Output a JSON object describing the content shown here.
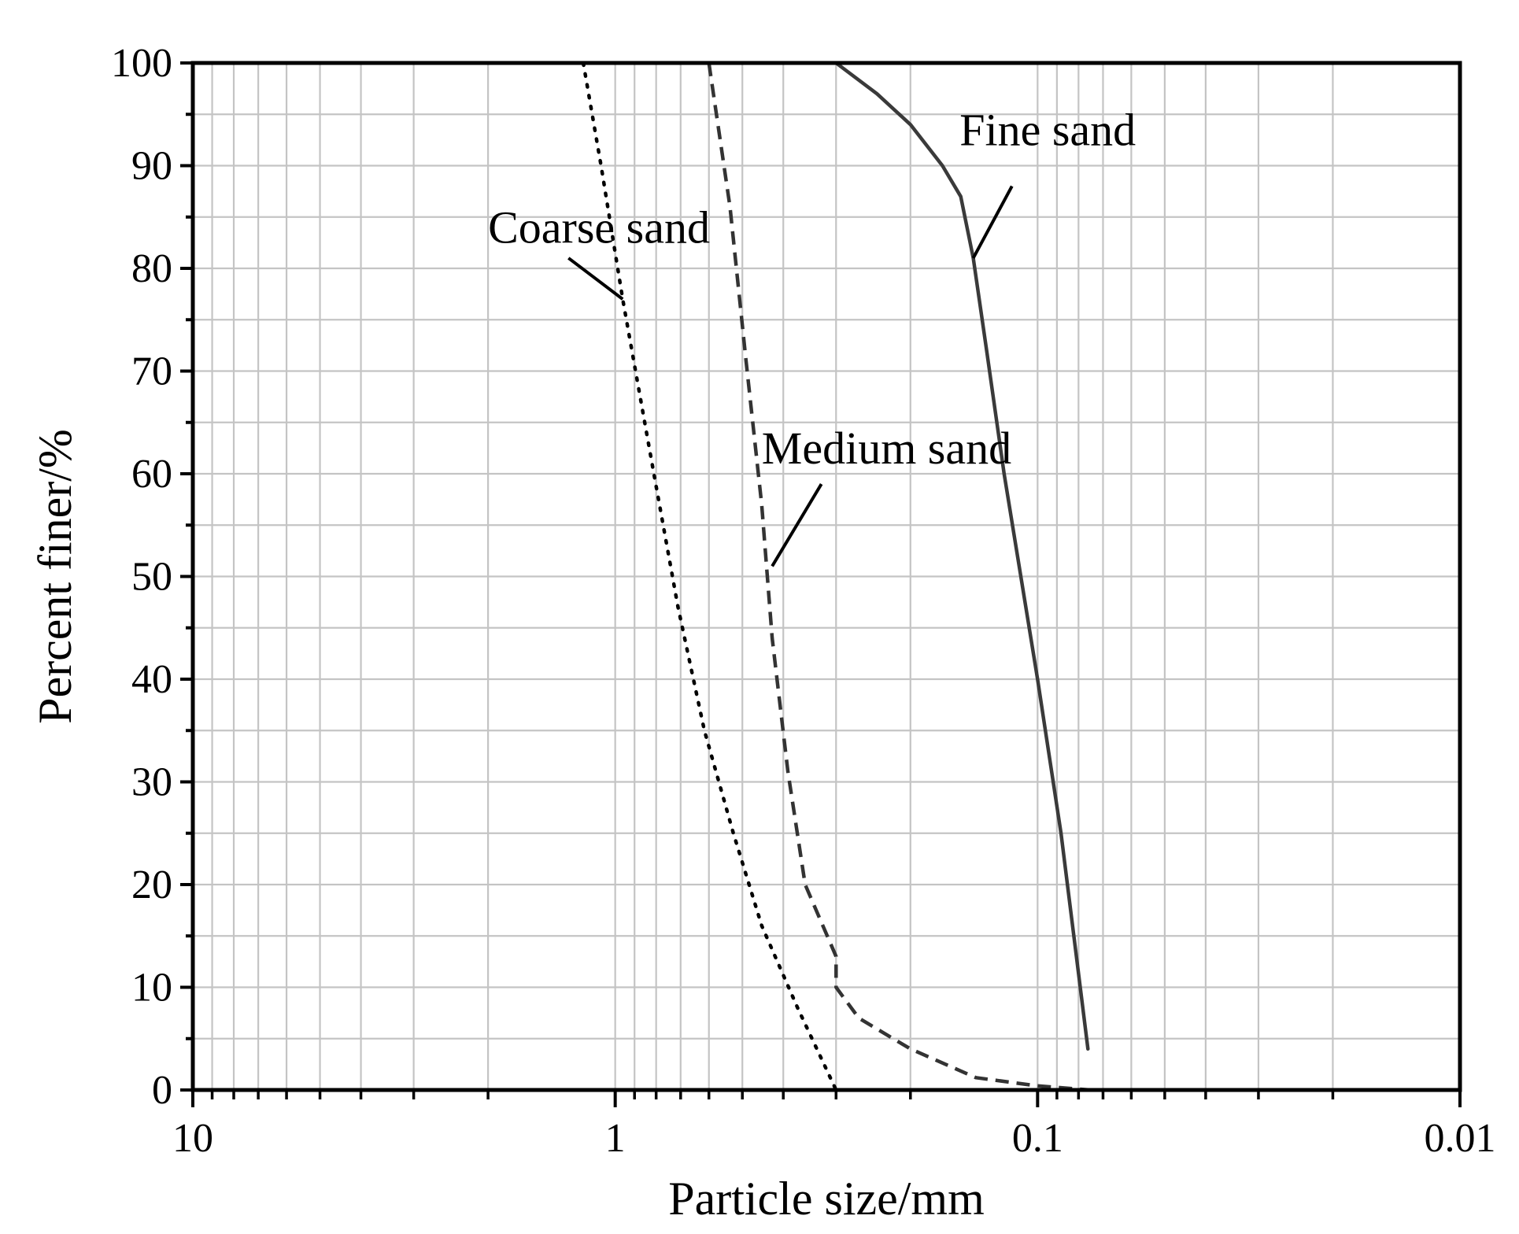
{
  "chart_data": {
    "type": "line",
    "title": "",
    "xlabel": "Particle size/mm",
    "ylabel": "Percent finer/%",
    "x_scale": "log",
    "x_reversed": true,
    "xlim": [
      10,
      0.01
    ],
    "ylim": [
      0,
      100
    ],
    "x_ticks": [
      {
        "value": 10,
        "label": "10"
      },
      {
        "value": 1,
        "label": "1"
      },
      {
        "value": 0.1,
        "label": "0.1"
      },
      {
        "value": 0.01,
        "label": "0.01"
      }
    ],
    "y_ticks": [
      {
        "value": 0,
        "label": "0"
      },
      {
        "value": 10,
        "label": "10"
      },
      {
        "value": 20,
        "label": "20"
      },
      {
        "value": 30,
        "label": "30"
      },
      {
        "value": 40,
        "label": "40"
      },
      {
        "value": 50,
        "label": "50"
      },
      {
        "value": 60,
        "label": "60"
      },
      {
        "value": 70,
        "label": "70"
      },
      {
        "value": 80,
        "label": "80"
      },
      {
        "value": 90,
        "label": "90"
      },
      {
        "value": 100,
        "label": "100"
      }
    ],
    "grid": true,
    "legend": "none",
    "series": [
      {
        "name": "Coarse sand",
        "line_style": "dotted",
        "color": "#000000",
        "points": [
          [
            1.19,
            100
          ],
          [
            1.08,
            90
          ],
          [
            0.96,
            77
          ],
          [
            0.81,
            60
          ],
          [
            0.71,
            47
          ],
          [
            0.615,
            35
          ],
          [
            0.525,
            25
          ],
          [
            0.45,
            16
          ],
          [
            0.37,
            8
          ],
          [
            0.3,
            0
          ]
        ]
      },
      {
        "name": "Medium sand",
        "line_style": "dashed",
        "color": "#333333",
        "points": [
          [
            0.6,
            100
          ],
          [
            0.535,
            86
          ],
          [
            0.49,
            71
          ],
          [
            0.45,
            57
          ],
          [
            0.425,
            44
          ],
          [
            0.39,
            31
          ],
          [
            0.355,
            20
          ],
          [
            0.3,
            13
          ],
          [
            0.3,
            10
          ],
          [
            0.265,
            7
          ],
          [
            0.2,
            4
          ],
          [
            0.14,
            1.2
          ],
          [
            0.1,
            0.4
          ],
          [
            0.075,
            0
          ]
        ]
      },
      {
        "name": "Fine sand",
        "line_style": "solid",
        "color": "#3a3a3a",
        "points": [
          [
            0.3,
            100
          ],
          [
            0.24,
            97
          ],
          [
            0.2,
            94
          ],
          [
            0.168,
            90
          ],
          [
            0.152,
            87
          ],
          [
            0.142,
            81
          ],
          [
            0.132,
            72
          ],
          [
            0.12,
            60
          ],
          [
            0.1,
            40
          ],
          [
            0.088,
            25
          ],
          [
            0.076,
            4
          ]
        ]
      }
    ],
    "annotations": [
      {
        "text": "Coarse sand",
        "series": "Coarse sand",
        "label_at": [
          2.0,
          82.5
        ],
        "pointer_from": [
          1.29,
          81
        ],
        "pointer_to": [
          0.96,
          77
        ]
      },
      {
        "text": "Medium sand",
        "series": "Medium sand",
        "label_at": [
          0.45,
          61
        ],
        "pointer_from": [
          0.325,
          59
        ],
        "pointer_to": [
          0.425,
          51
        ]
      },
      {
        "text": "Fine sand",
        "series": "Fine sand",
        "label_at": [
          0.153,
          92
        ],
        "pointer_from": [
          0.115,
          88
        ],
        "pointer_to": [
          0.142,
          81
        ]
      }
    ]
  }
}
